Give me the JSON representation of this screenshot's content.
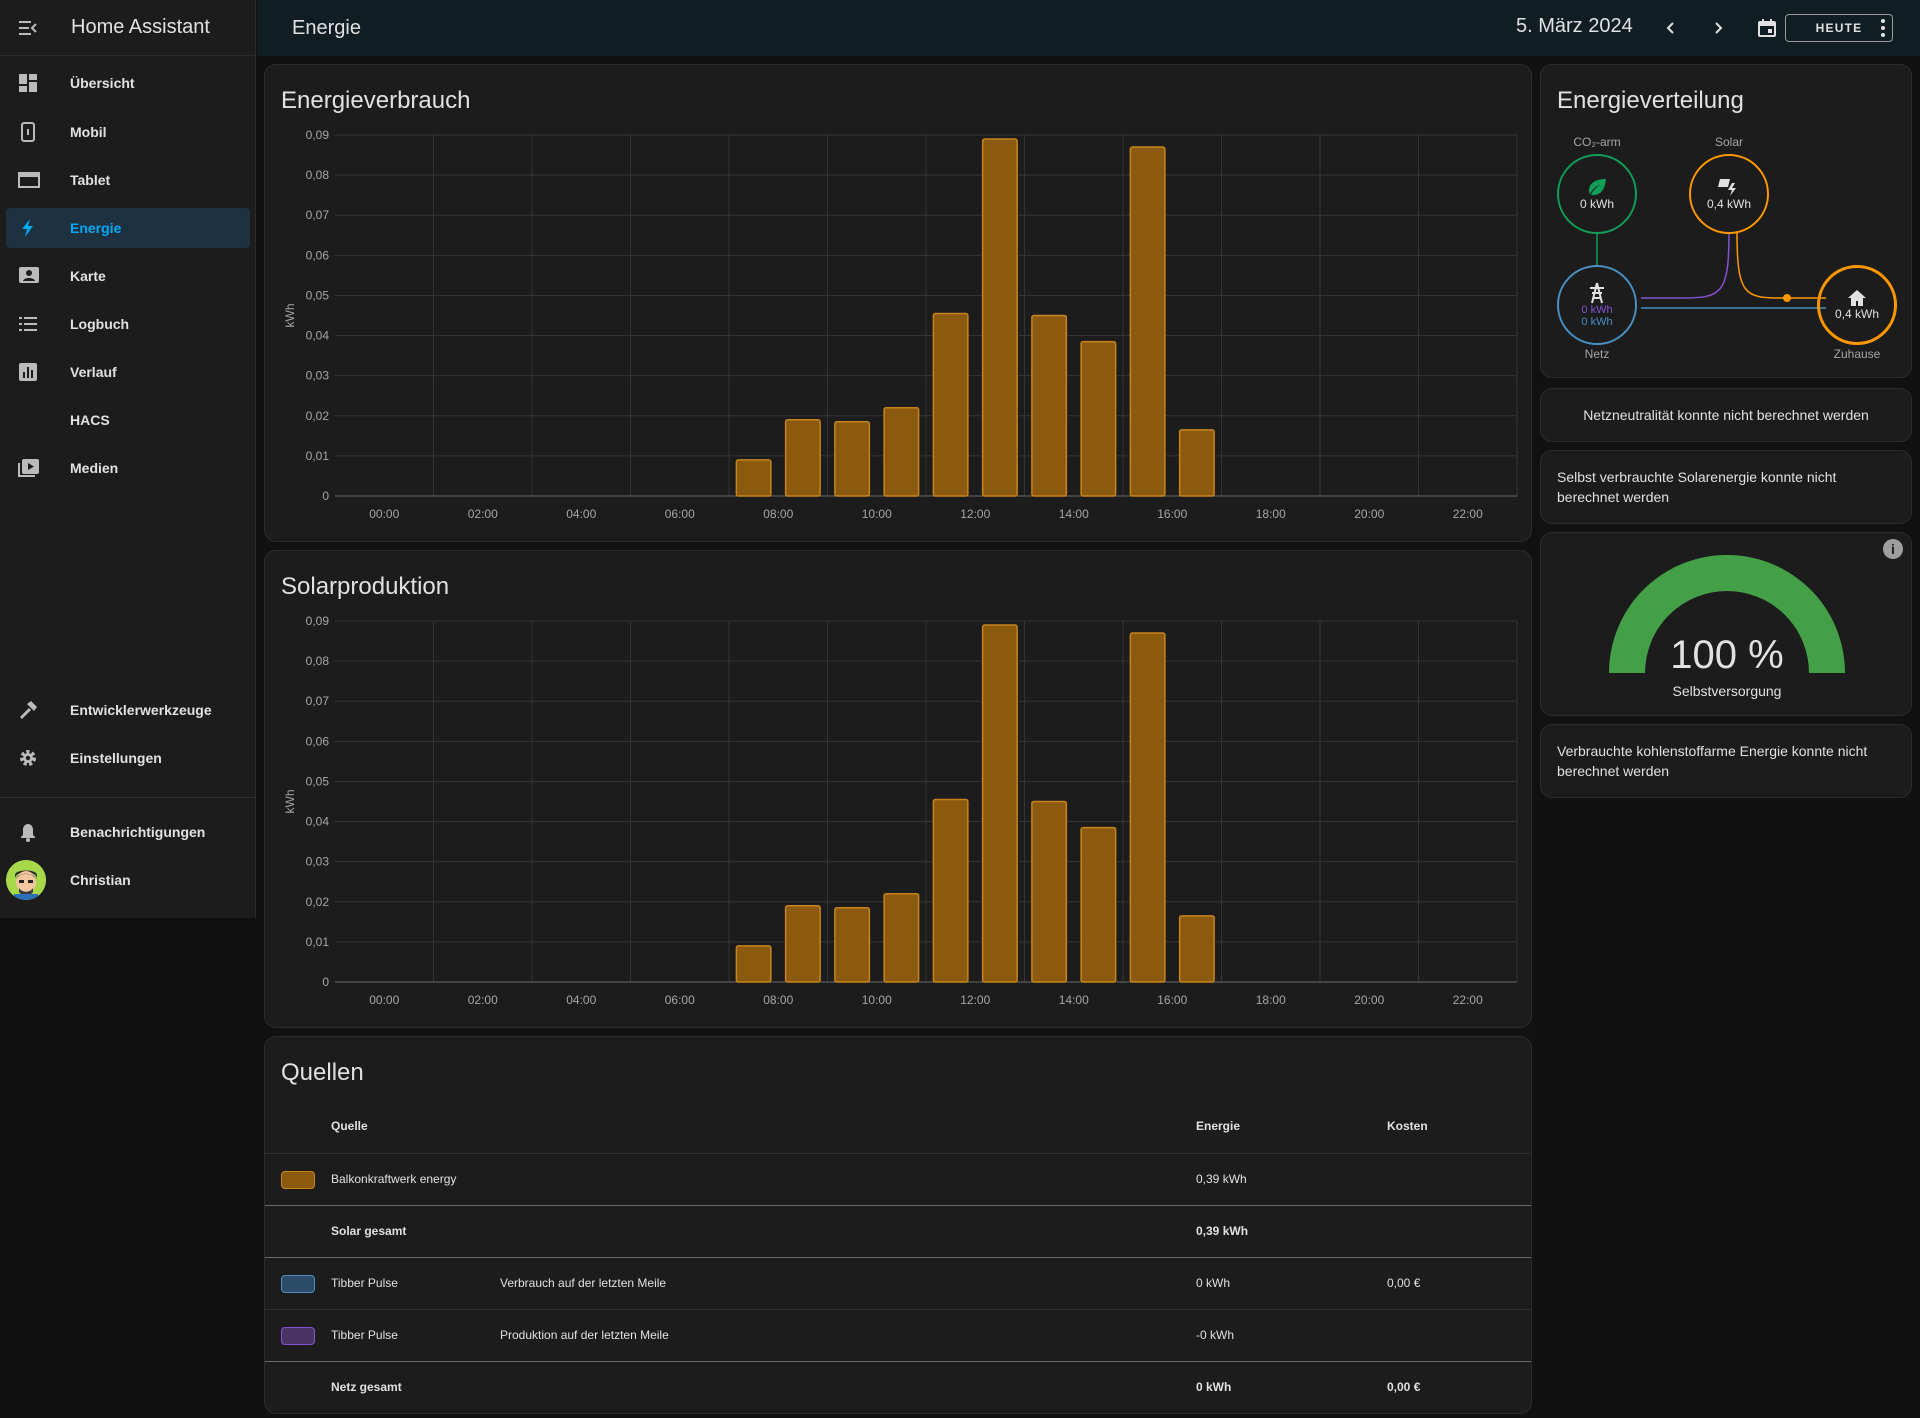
{
  "app": {
    "title": "Home Assistant"
  },
  "sidebar": {
    "items": [
      {
        "label": "Übersicht",
        "icon": "dashboard-icon"
      },
      {
        "label": "Mobil",
        "icon": "phone-icon"
      },
      {
        "label": "Tablet",
        "icon": "tablet-icon"
      },
      {
        "label": "Energie",
        "icon": "lightning-icon",
        "active": true
      },
      {
        "label": "Karte",
        "icon": "map-icon"
      },
      {
        "label": "Logbuch",
        "icon": "list-icon"
      },
      {
        "label": "Verlauf",
        "icon": "chart-icon"
      },
      {
        "label": "HACS",
        "icon": "hacs-icon"
      },
      {
        "label": "Medien",
        "icon": "media-icon"
      }
    ],
    "bottom_items": [
      {
        "label": "Entwicklerwerkzeuge",
        "icon": "hammer-icon"
      },
      {
        "label": "Einstellungen",
        "icon": "gear-icon"
      }
    ],
    "notifications": "Benachrichtigungen",
    "user": "Christian"
  },
  "header": {
    "title": "Energie",
    "date": "5. März 2024",
    "today_label": "HEUTE"
  },
  "consumption_card": {
    "title": "Energieverbrauch"
  },
  "solar_card": {
    "title": "Solarproduktion"
  },
  "chart_data": [
    {
      "type": "bar",
      "title": "Energieverbrauch",
      "ylabel": "kWh",
      "xlabel": "",
      "ylim": [
        0,
        0.09
      ],
      "yticks": [
        "0",
        "0,01",
        "0,02",
        "0,03",
        "0,04",
        "0,05",
        "0,06",
        "0,07",
        "0,08",
        "0,09"
      ],
      "xticks": [
        "00:00",
        "02:00",
        "04:00",
        "06:00",
        "08:00",
        "10:00",
        "12:00",
        "14:00",
        "16:00",
        "18:00",
        "20:00",
        "22:00"
      ],
      "categories": [
        "00",
        "01",
        "02",
        "03",
        "04",
        "05",
        "06",
        "07",
        "08",
        "09",
        "10",
        "11",
        "12",
        "13",
        "14",
        "15",
        "16",
        "17",
        "18",
        "19",
        "20",
        "21",
        "22",
        "23"
      ],
      "values": [
        0,
        0,
        0,
        0,
        0,
        0,
        0,
        0,
        0.009,
        0.019,
        0.0185,
        0.022,
        0.0455,
        0.089,
        0.045,
        0.0385,
        0.087,
        0.0165,
        0,
        0,
        0,
        0,
        0,
        0
      ],
      "color": "#8c5a0e",
      "grid": true
    },
    {
      "type": "bar",
      "title": "Solarproduktion",
      "ylabel": "kWh",
      "xlabel": "",
      "ylim": [
        0,
        0.09
      ],
      "yticks": [
        "0",
        "0,01",
        "0,02",
        "0,03",
        "0,04",
        "0,05",
        "0,06",
        "0,07",
        "0,08",
        "0,09"
      ],
      "xticks": [
        "00:00",
        "02:00",
        "04:00",
        "06:00",
        "08:00",
        "10:00",
        "12:00",
        "14:00",
        "16:00",
        "18:00",
        "20:00",
        "22:00"
      ],
      "categories": [
        "00",
        "01",
        "02",
        "03",
        "04",
        "05",
        "06",
        "07",
        "08",
        "09",
        "10",
        "11",
        "12",
        "13",
        "14",
        "15",
        "16",
        "17",
        "18",
        "19",
        "20",
        "21",
        "22",
        "23"
      ],
      "values": [
        0,
        0,
        0,
        0,
        0,
        0,
        0,
        0,
        0.009,
        0.019,
        0.0185,
        0.022,
        0.0455,
        0.089,
        0.045,
        0.0385,
        0.087,
        0.0165,
        0,
        0,
        0,
        0,
        0,
        0
      ],
      "color": "#8c5a0e",
      "grid": true
    }
  ],
  "distribution": {
    "title": "Energieverteilung",
    "low_carbon": {
      "label": "CO₂-arm",
      "value": "0 kWh",
      "color": "#0f9d58"
    },
    "solar": {
      "label": "Solar",
      "value": "0,4 kWh",
      "color": "#ff9800"
    },
    "grid": {
      "label": "Netz",
      "value_in": "0 kWh",
      "value_out": "0 kWh",
      "color": "#488fc2",
      "out_color": "#8353d1"
    },
    "home": {
      "label": "Zuhause",
      "value": "0,4 kWh",
      "color": "#ff9800"
    }
  },
  "messages": {
    "grid_neutrality": "Netzneutralität konnte nicht berechnet werden",
    "solar_self": "Selbst verbrauchte Solarenergie konnte nicht berechnet werden",
    "low_carbon": "Verbrauchte kohlenstoffarme Energie konnte nicht berechnet werden"
  },
  "gauge": {
    "value": 100,
    "value_text": "100 %",
    "label": "Selbstversorgung",
    "color": "#43a047"
  },
  "sources": {
    "title": "Quellen",
    "headers": {
      "source": "Quelle",
      "energy": "Energie",
      "cost": "Kosten"
    },
    "rows": [
      {
        "swatch": "#8c5a0e",
        "border": "#c8841b",
        "name": "Balkonkraftwerk energy",
        "detail": "",
        "energy": "0,39 kWh",
        "cost": ""
      },
      {
        "swatch": "",
        "name": "Solar gesamt",
        "detail": "",
        "energy": "0,39 kWh",
        "cost": "",
        "total": true
      },
      {
        "swatch": "#2c4b66",
        "border": "#488fc2",
        "name": "Tibber Pulse",
        "detail": "Verbrauch auf der letzten Meile",
        "energy": "0 kWh",
        "cost": "0,00 €"
      },
      {
        "swatch": "#4b3463",
        "border": "#8353d1",
        "name": "Tibber Pulse",
        "detail": "Produktion auf der letzten Meile",
        "energy": "-0 kWh",
        "cost": ""
      },
      {
        "swatch": "",
        "name": "Netz gesamt",
        "detail": "",
        "energy": "0 kWh",
        "cost": "0,00 €",
        "total": true
      }
    ]
  }
}
